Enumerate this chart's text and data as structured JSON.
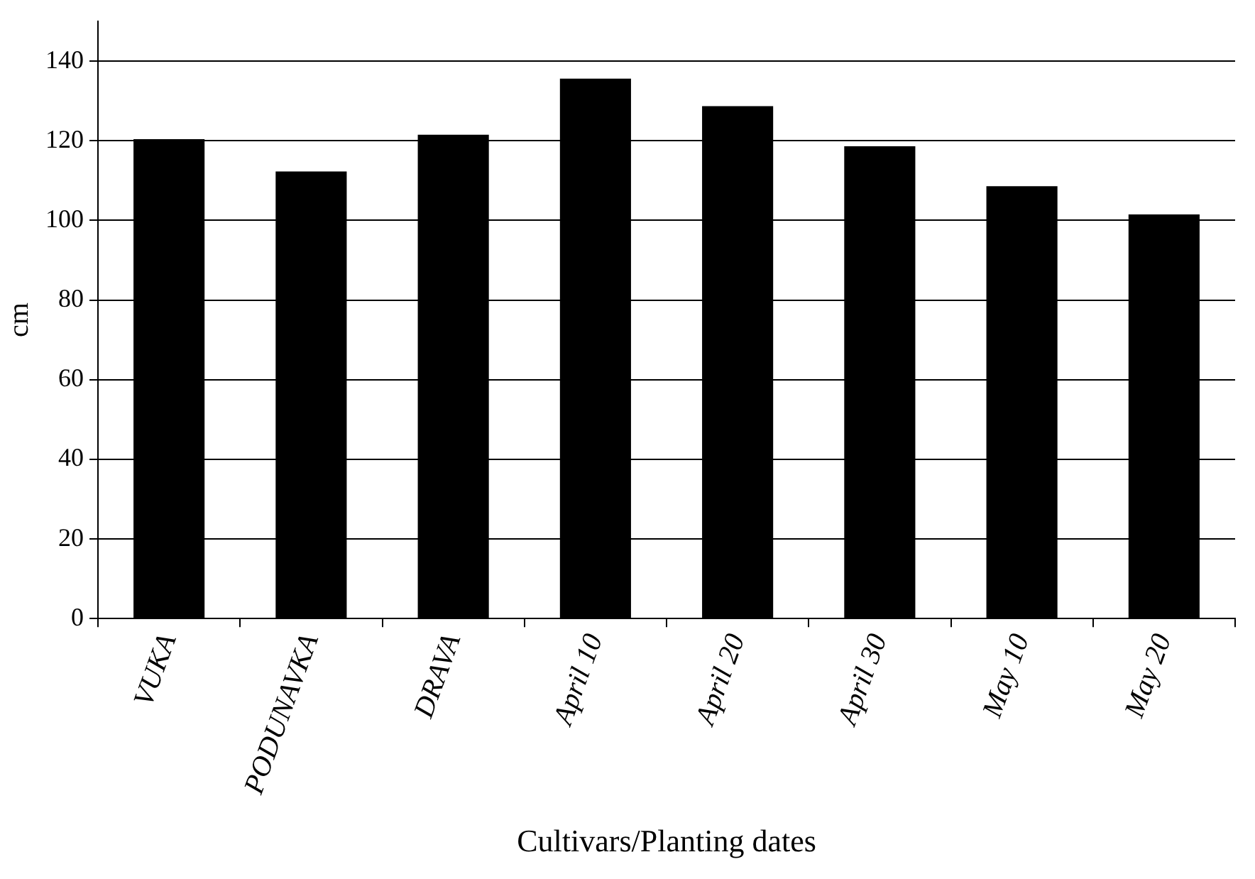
{
  "chart_data": {
    "type": "bar",
    "xlabel": "Cultivars/Planting dates",
    "ylabel": "cm",
    "categories": [
      "VUKA",
      "PODUNAVKA",
      "DRAVA",
      "April 10",
      "April 20",
      "April 30",
      "May 10",
      "May 20"
    ],
    "values": [
      120.4,
      112.3,
      121.5,
      135.6,
      128.7,
      118.6,
      108.6,
      101.5
    ],
    "color": "#000000",
    "ylim": [
      0,
      150
    ],
    "yticks": [
      0,
      20,
      40,
      60,
      80,
      100,
      120,
      140
    ],
    "grid": "y",
    "legend": false
  }
}
